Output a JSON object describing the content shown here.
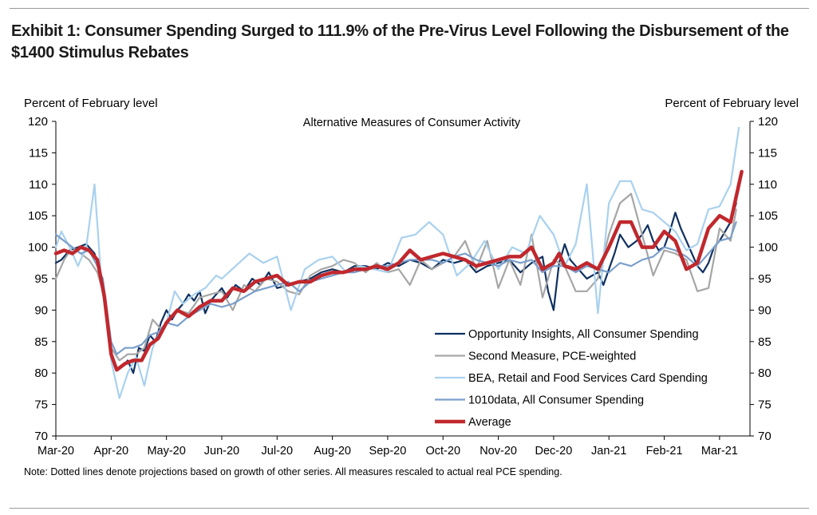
{
  "exhibit": {
    "title": "Exhibit 1: Consumer Spending Surged to 111.9% of the Pre-Virus Level Following the Disbursement of the $1400 Stimulus Rebates",
    "note": "Note: Dotted lines denote projections based on growth of other series. All measures rescaled to actual real PCE spending."
  },
  "chart_data": {
    "type": "line",
    "title": "Alternative Measures of Consumer Activity",
    "ylabel_left": "Percent of February level",
    "ylabel_right": "Percent of February level",
    "ylim": [
      70,
      120
    ],
    "yticks": [
      70,
      75,
      80,
      85,
      90,
      95,
      100,
      105,
      110,
      115,
      120
    ],
    "xlim": [
      0,
      12.55
    ],
    "x_tick_labels": [
      "Mar-20",
      "Apr-20",
      "May-20",
      "Jun-20",
      "Jul-20",
      "Aug-20",
      "Sep-20",
      "Oct-20",
      "Nov-20",
      "Dec-20",
      "Jan-21",
      "Feb-21",
      "Mar-21"
    ],
    "x_unit": "months since Mar-20",
    "grid": false,
    "legend_position": "bottom-right",
    "series": [
      {
        "name": "Opportunity Insights, All Consumer Spending",
        "color": "#0f3060",
        "width": 2.2,
        "x": [
          0,
          0.1,
          0.25,
          0.4,
          0.55,
          0.7,
          0.8,
          1.0,
          1.1,
          1.2,
          1.3,
          1.4,
          1.5,
          1.6,
          1.7,
          1.8,
          1.9,
          2.0,
          2.1,
          2.2,
          2.3,
          2.4,
          2.5,
          2.6,
          2.7,
          2.8,
          2.9,
          3.0,
          3.1,
          3.25,
          3.4,
          3.55,
          3.7,
          3.85,
          4.0,
          4.2,
          4.4,
          4.6,
          4.8,
          5.0,
          5.2,
          5.4,
          5.6,
          5.8,
          6.0,
          6.2,
          6.4,
          6.6,
          6.8,
          7.0,
          7.2,
          7.4,
          7.6,
          7.8,
          8.0,
          8.2,
          8.4,
          8.6,
          8.8,
          8.9,
          9.0,
          9.1,
          9.2,
          9.3,
          9.45,
          9.6,
          9.8,
          9.9,
          10.0,
          10.1,
          10.2,
          10.35,
          10.5,
          10.6,
          10.7,
          10.8,
          10.9,
          11.0,
          11.1,
          11.2,
          11.3,
          11.4,
          11.5,
          11.6,
          11.7,
          11.8,
          11.9,
          12.0,
          12.1,
          12.2,
          12.3
        ],
        "y": [
          97.5,
          98,
          99.5,
          100,
          100.5,
          99,
          96,
          83,
          80.5,
          81,
          82,
          80,
          84,
          83.5,
          86,
          85,
          88,
          90,
          88.5,
          90,
          91,
          92.5,
          91.5,
          93,
          89.5,
          91.5,
          92.5,
          93.5,
          92,
          94,
          93,
          95,
          94,
          96,
          93.5,
          94,
          94.5,
          95,
          96,
          96.5,
          96,
          97,
          97,
          96.5,
          97.5,
          97,
          98,
          97.5,
          96.5,
          98,
          97.5,
          98,
          96,
          97,
          97.5,
          98,
          96,
          97.5,
          98.5,
          93,
          90,
          97.5,
          100.5,
          98,
          96.5,
          95,
          96,
          94,
          96.5,
          99,
          102,
          100,
          101,
          102,
          103.5,
          101,
          99.5,
          100,
          102.5,
          105.5,
          103,
          101,
          99,
          97,
          96,
          97.5,
          100,
          101,
          102.5,
          104,
          107
        ]
      },
      {
        "name": "Second Measure, PCE-weighted",
        "color": "#a6a6a6",
        "width": 2.2,
        "x": [
          0,
          0.15,
          0.3,
          0.45,
          0.6,
          0.75,
          0.85,
          1.0,
          1.15,
          1.3,
          1.45,
          1.6,
          1.75,
          1.9,
          2.0,
          2.2,
          2.4,
          2.6,
          2.8,
          3.0,
          3.2,
          3.4,
          3.6,
          3.8,
          4.0,
          4.2,
          4.4,
          4.6,
          4.8,
          5.0,
          5.2,
          5.4,
          5.6,
          5.8,
          6.0,
          6.2,
          6.4,
          6.6,
          6.8,
          7.0,
          7.2,
          7.4,
          7.6,
          7.8,
          8.0,
          8.2,
          8.4,
          8.6,
          8.8,
          9.0,
          9.2,
          9.4,
          9.6,
          9.8,
          10.0,
          10.2,
          10.4,
          10.6,
          10.8,
          11.0,
          11.2,
          11.4,
          11.6,
          11.8,
          12.0,
          12.2,
          12.3
        ],
        "y": [
          95,
          98,
          100,
          99,
          98,
          96,
          93,
          84,
          82,
          83,
          83,
          84,
          88.5,
          87,
          88,
          90,
          89.5,
          92,
          92.5,
          93,
          90,
          94,
          93,
          95,
          94.5,
          93,
          92.5,
          95.5,
          96.5,
          97,
          98,
          97.5,
          96,
          97.5,
          96,
          96.5,
          94,
          98,
          96.5,
          97.5,
          98.5,
          101,
          96.5,
          101,
          93.5,
          98,
          94,
          102,
          92,
          98,
          97,
          93,
          93,
          95,
          102,
          107,
          108.5,
          102,
          95.5,
          99.5,
          99,
          98,
          93,
          93.5,
          103,
          101,
          106
        ]
      },
      {
        "name": "BEA, Retail and Food Services Card Spending",
        "color": "#a9d1ee",
        "width": 2.2,
        "x": [
          0,
          0.1,
          0.25,
          0.4,
          0.55,
          0.7,
          0.82,
          1.0,
          1.15,
          1.3,
          1.45,
          1.6,
          1.75,
          1.9,
          2.0,
          2.15,
          2.3,
          2.5,
          2.7,
          2.9,
          3.0,
          3.25,
          3.5,
          3.75,
          4.0,
          4.25,
          4.5,
          4.75,
          5.0,
          5.25,
          5.5,
          5.75,
          6.0,
          6.25,
          6.5,
          6.75,
          7.0,
          7.25,
          7.5,
          7.75,
          8.0,
          8.25,
          8.5,
          8.75,
          9.0,
          9.2,
          9.4,
          9.6,
          9.8,
          10.0,
          10.2,
          10.4,
          10.6,
          10.8,
          11.0,
          11.2,
          11.4,
          11.6,
          11.8,
          12.0,
          12.2,
          12.35
        ],
        "y": [
          100,
          102.5,
          100,
          97,
          100,
          110,
          95,
          82,
          76,
          80,
          82.5,
          78,
          84,
          87,
          88,
          93,
          91,
          92.5,
          93.5,
          95.5,
          95,
          97,
          99,
          97.5,
          98.5,
          90,
          96.5,
          98,
          98.5,
          96,
          97,
          96.5,
          96,
          101.5,
          102,
          104,
          102,
          95.5,
          97.5,
          101,
          96.5,
          100,
          99,
          105,
          102,
          97,
          100.5,
          110,
          89.5,
          107,
          110.5,
          110.5,
          106,
          105.5,
          104,
          102.5,
          99.5,
          100.5,
          106,
          106.5,
          110,
          119
        ]
      },
      {
        "name": "1010data, All Consumer Spending",
        "color": "#7a9fcc",
        "width": 2.2,
        "x": [
          0,
          0.15,
          0.3,
          0.45,
          0.6,
          0.75,
          0.85,
          1.0,
          1.1,
          1.25,
          1.4,
          1.55,
          1.7,
          1.85,
          2.0,
          2.2,
          2.4,
          2.6,
          2.8,
          3.0,
          3.2,
          3.4,
          3.6,
          3.8,
          4.0,
          4.2,
          4.4,
          4.6,
          4.8,
          5.0,
          5.2,
          5.4,
          5.6,
          5.8,
          6.0,
          6.2,
          6.4,
          6.6,
          6.8,
          7.0,
          7.2,
          7.4,
          7.6,
          7.8,
          8.0,
          8.2,
          8.4,
          8.6,
          8.8,
          9.0,
          9.2,
          9.4,
          9.6,
          9.8,
          10.0,
          10.2,
          10.4,
          10.6,
          10.8,
          11.0,
          11.2,
          11.4,
          11.6,
          11.8,
          12.0,
          12.2,
          12.3
        ],
        "y": [
          102,
          101,
          100,
          99,
          99.5,
          97,
          95,
          85,
          83,
          84,
          84,
          84.5,
          86,
          86.5,
          88,
          87.5,
          89,
          90,
          91,
          90.5,
          91,
          92,
          93,
          93.5,
          94,
          94.5,
          93,
          94.5,
          95,
          95.5,
          96,
          96,
          96.5,
          97,
          97,
          97.5,
          98,
          98,
          98,
          97.5,
          98.5,
          99,
          98,
          97.5,
          97,
          98,
          97.5,
          98,
          96,
          97,
          97,
          96,
          97,
          96.5,
          96,
          97.5,
          97,
          98,
          98.5,
          100,
          99.5,
          98.5,
          97,
          99,
          101,
          101.5,
          104
        ]
      },
      {
        "name": "Average",
        "color": "#c0282d",
        "width": 4.5,
        "x": [
          0,
          0.15,
          0.3,
          0.45,
          0.6,
          0.75,
          0.88,
          1.0,
          1.1,
          1.25,
          1.4,
          1.55,
          1.7,
          1.85,
          2.0,
          2.2,
          2.4,
          2.6,
          2.8,
          3.0,
          3.2,
          3.4,
          3.6,
          3.8,
          4.0,
          4.2,
          4.4,
          4.6,
          4.8,
          5.0,
          5.2,
          5.4,
          5.6,
          5.8,
          6.0,
          6.2,
          6.4,
          6.6,
          6.8,
          7.0,
          7.2,
          7.4,
          7.6,
          7.8,
          8.0,
          8.2,
          8.4,
          8.6,
          8.8,
          9.0,
          9.1,
          9.2,
          9.4,
          9.6,
          9.8,
          10.0,
          10.2,
          10.4,
          10.6,
          10.8,
          11.0,
          11.2,
          11.4,
          11.6,
          11.8,
          12.0,
          12.2,
          12.4
        ],
        "y": [
          99,
          99.5,
          99,
          100,
          99.5,
          98,
          92,
          83,
          80.5,
          81.5,
          82,
          82,
          84.5,
          85.5,
          88,
          90,
          89,
          90.5,
          91.5,
          91.5,
          93.5,
          93,
          94.5,
          95,
          95.5,
          94,
          94.5,
          94.5,
          95.5,
          96,
          96,
          96.5,
          96.5,
          97,
          96.5,
          97.5,
          99.5,
          98,
          98.5,
          99,
          98.5,
          98,
          97,
          97.5,
          98,
          98.5,
          98.5,
          100,
          96.5,
          97.5,
          99,
          97,
          96.5,
          97.5,
          96.5,
          100,
          104,
          104,
          100,
          100,
          102.5,
          101,
          96.5,
          97.5,
          103,
          105,
          104,
          112
        ]
      }
    ]
  }
}
